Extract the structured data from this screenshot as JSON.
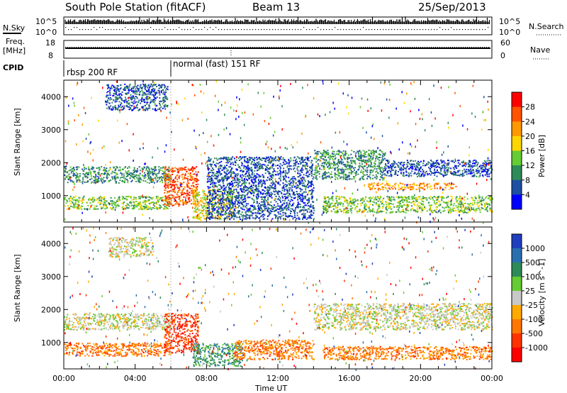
{
  "header": {
    "station": "South Pole Station (fitACF)",
    "beam": "Beam 13",
    "date": "25/Sep/2013"
  },
  "top_panels": {
    "nsky_label": "N.Sky",
    "nsearch_label": "N.Search",
    "nsky_ticks": [
      "10^5",
      "10^0"
    ],
    "nsearch_ticks": [
      "10^5",
      "10^0"
    ],
    "freq_label_1": "Freq.",
    "freq_label_2": "[MHz]",
    "freq_ticks": [
      "18",
      "8"
    ],
    "nave_ticks": [
      "60",
      "0"
    ],
    "nave_label": "Nave",
    "cpid_label": "CPID",
    "cpid_segments": [
      "rbsp 200 RF",
      "normal (fast) 151 RF"
    ]
  },
  "colors": {
    "power_scale": [
      "#0000ff",
      "#1f4fa3",
      "#2e8b57",
      "#66cc33",
      "#ffd700",
      "#ff9900",
      "#ff5500",
      "#ff0000"
    ],
    "velocity_scale": [
      "#1f3fbf",
      "#2a6fb0",
      "#2e8b57",
      "#66cc33",
      "#c8c8c8",
      "#ffaa00",
      "#ff7700",
      "#ff3300",
      "#ff0000"
    ]
  },
  "chart_data": [
    {
      "type": "heatmap",
      "panel": "power",
      "ylabel": "Slant Range [km]",
      "xlabel": "Time UT",
      "x_ticks": [
        "00:00",
        "04:00",
        "08:00",
        "12:00",
        "16:00",
        "20:00",
        "00:00"
      ],
      "y_ticks": [
        "1000",
        "2000",
        "3000",
        "4000"
      ],
      "ylim": [
        200,
        4500
      ],
      "xlim_hours": [
        0,
        24
      ],
      "colorbar_label": "Power [dB]",
      "colorbar_ticks": [
        "4",
        "8",
        "12",
        "16",
        "20",
        "24",
        "28"
      ],
      "bands": [
        {
          "t0": 0.0,
          "t1": 6.0,
          "r0": 1400,
          "r1": 1900,
          "level": 2
        },
        {
          "t0": 0.0,
          "t1": 6.0,
          "r0": 600,
          "r1": 1000,
          "level": 3
        },
        {
          "t0": 2.3,
          "t1": 5.8,
          "r0": 3600,
          "r1": 4400,
          "level": 1
        },
        {
          "t0": 5.6,
          "t1": 7.5,
          "r0": 700,
          "r1": 1900,
          "level": 6
        },
        {
          "t0": 7.2,
          "t1": 9.5,
          "r0": 300,
          "r1": 1200,
          "level": 4
        },
        {
          "t0": 8.0,
          "t1": 14.0,
          "r0": 300,
          "r1": 2200,
          "level": 1
        },
        {
          "t0": 14.5,
          "t1": 24.0,
          "r0": 500,
          "r1": 1000,
          "level": 3
        },
        {
          "t0": 14.0,
          "t1": 18.0,
          "r0": 1500,
          "r1": 2400,
          "level": 2
        },
        {
          "t0": 17.0,
          "t1": 22.0,
          "r0": 1200,
          "r1": 1400,
          "level": 5
        },
        {
          "t0": 18.0,
          "t1": 24.0,
          "r0": 1600,
          "r1": 2100,
          "level": 1
        }
      ]
    },
    {
      "type": "heatmap",
      "panel": "velocity",
      "ylabel": "Slant Range [km]",
      "xlabel": "Time UT",
      "x_ticks": [
        "00:00",
        "04:00",
        "08:00",
        "12:00",
        "16:00",
        "20:00",
        "00:00"
      ],
      "y_ticks": [
        "1000",
        "2000",
        "3000",
        "4000"
      ],
      "ylim": [
        200,
        4500
      ],
      "xlim_hours": [
        0,
        24
      ],
      "colorbar_label": "Velocity [m s^-1]",
      "colorbar_ticks": [
        "1000",
        "500",
        "100",
        "25",
        "-25",
        "-100",
        "-500",
        "-1000"
      ],
      "bands": [
        {
          "t0": 0.0,
          "t1": 6.0,
          "r0": 1400,
          "r1": 1900,
          "level": 4
        },
        {
          "t0": 0.0,
          "t1": 6.0,
          "r0": 600,
          "r1": 1000,
          "level": 6
        },
        {
          "t0": 5.6,
          "t1": 7.5,
          "r0": 700,
          "r1": 1900,
          "level": 7
        },
        {
          "t0": 7.2,
          "t1": 10.0,
          "r0": 300,
          "r1": 1000,
          "level": 2
        },
        {
          "t0": 9.5,
          "t1": 14.0,
          "r0": 500,
          "r1": 1100,
          "level": 6
        },
        {
          "t0": 14.5,
          "t1": 24.0,
          "r0": 500,
          "r1": 900,
          "level": 6
        },
        {
          "t0": 14.0,
          "t1": 24.0,
          "r0": 1400,
          "r1": 2200,
          "level": 4
        },
        {
          "t0": 2.5,
          "t1": 5.0,
          "r0": 3600,
          "r1": 4200,
          "level": 4
        }
      ]
    }
  ]
}
